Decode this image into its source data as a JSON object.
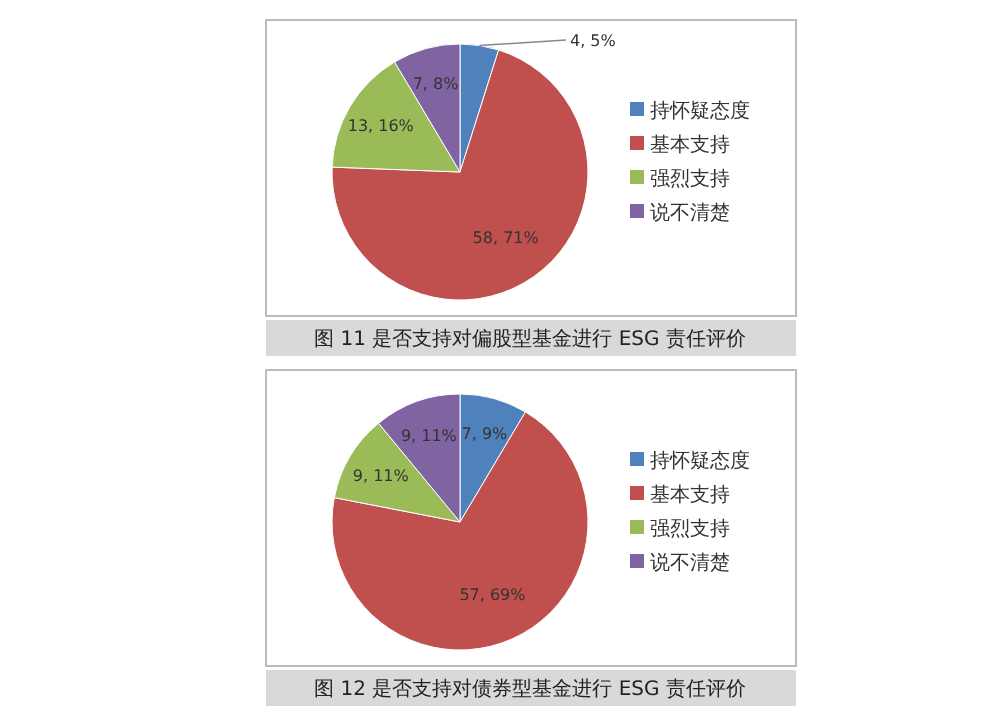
{
  "chart_data": [
    {
      "type": "pie",
      "title": "图 11 是否支持对偏股型基金进行 ESG 责任评价",
      "categories": [
        "持怀疑态度",
        "基本支持",
        "强烈支持",
        "说不清楚"
      ],
      "values": [
        4,
        58,
        13,
        7
      ],
      "colors": [
        "#4f81bd",
        "#c0504d",
        "#9bbb59",
        "#8064a2"
      ],
      "value_labels": [
        "4, 5%",
        "58, 71%",
        "13, 16%",
        "7, 8%"
      ],
      "legend": "right"
    },
    {
      "type": "pie",
      "title": "图 12 是否支持对债券型基金进行 ESG 责任评价",
      "categories": [
        "持怀疑态度",
        "基本支持",
        "强烈支持",
        "说不清楚"
      ],
      "values": [
        7,
        57,
        9,
        9
      ],
      "colors": [
        "#4f81bd",
        "#c0504d",
        "#9bbb59",
        "#8064a2"
      ],
      "value_labels": [
        "7, 9%",
        "57, 69%",
        "9, 11%",
        "9, 11%"
      ],
      "legend": "right"
    }
  ]
}
